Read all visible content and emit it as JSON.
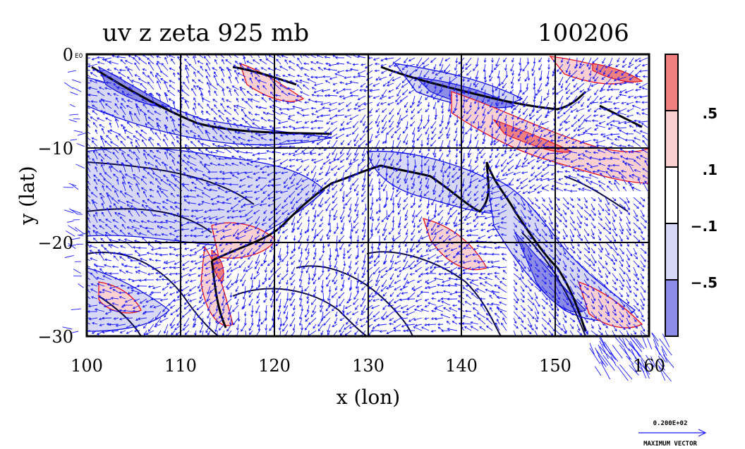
{
  "title_left": "uv z zeta 925 mb",
  "title_right": "100206",
  "xlabel": "x (lon)",
  "ylabel": "y (lat)",
  "x_ticks": [
    "100",
    "110",
    "120",
    "130",
    "140",
    "150",
    "160"
  ],
  "y_ticks": [
    "0",
    "−10",
    "−20",
    "−30"
  ],
  "y_tick_extra": "E0",
  "colorbar_labels": [
    ".5",
    ".1",
    "−.1",
    "−.5"
  ],
  "colorbar_colors": [
    "#f08080",
    "#fbd0d0",
    "#ffffff",
    "#d6d8f5",
    "#8c8ce6"
  ],
  "vector_ref_value": "0.200E+02",
  "vector_ref_label": "MAXIMUM VECTOR",
  "colors": {
    "positive_contour": "#e8101a",
    "negative_contour": "#1010e0",
    "vector": "#1a1aff",
    "height_contour": "#0a0a40"
  }
}
